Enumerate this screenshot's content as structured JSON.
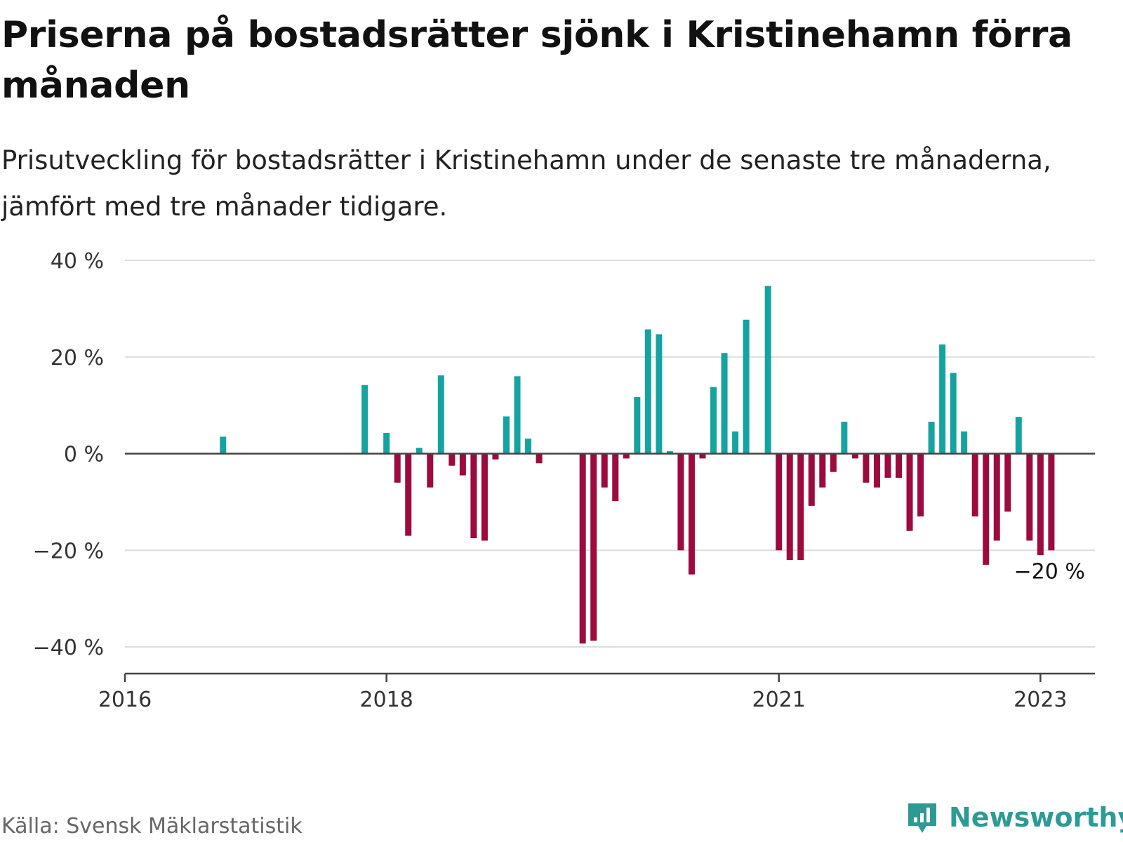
{
  "header": {
    "title": "Priserna på bostadsrätter sjönk i Kristinehamn förra månaden",
    "subtitle": "Prisutveckling för bostadsrätter i Kristinehamn under de senaste tre månaderna, jämfört med tre månader tidigare."
  },
  "footer": {
    "source": "Källa: Svensk Mäklarstatistik",
    "brand": "Newsworthy"
  },
  "colors": {
    "positive": "#15a3a0",
    "negative": "#9c0a3e",
    "gridline": "#dddddd",
    "axis": "#444444",
    "brand": "#2f9a94"
  },
  "chart_data": {
    "type": "bar",
    "unit": "%",
    "y_ticks": [
      40,
      20,
      0,
      -20,
      -40
    ],
    "y_tick_labels": [
      "40 %",
      "20 %",
      "0 %",
      "−20 %",
      "−40 %"
    ],
    "ylim": [
      -45,
      40
    ],
    "x_ticks": [
      "2016-01",
      "2018-01",
      "2021-01",
      "2023-01"
    ],
    "x_tick_labels": [
      "2016",
      "2018",
      "2021",
      "2023"
    ],
    "xlim": [
      "2016-01",
      "2023-06"
    ],
    "grid": true,
    "end_label": "−20 %",
    "series": [
      {
        "x": [
          "2016-10",
          "2017-11",
          "2018-01",
          "2018-02",
          "2018-03",
          "2018-04",
          "2018-05",
          "2018-06",
          "2018-07",
          "2018-08",
          "2018-09",
          "2018-10",
          "2018-11",
          "2018-12",
          "2019-01",
          "2019-02",
          "2019-03",
          "2019-07",
          "2019-08",
          "2019-09",
          "2019-10",
          "2019-11",
          "2019-12",
          "2020-01",
          "2020-02",
          "2020-03",
          "2020-04",
          "2020-05",
          "2020-06",
          "2020-07",
          "2020-08",
          "2020-09",
          "2020-10",
          "2020-12",
          "2021-01",
          "2021-02",
          "2021-03",
          "2021-04",
          "2021-05",
          "2021-06",
          "2021-07",
          "2021-08",
          "2021-09",
          "2021-10",
          "2021-11",
          "2021-12",
          "2022-01",
          "2022-02",
          "2022-03",
          "2022-04",
          "2022-05",
          "2022-06",
          "2022-07",
          "2022-08",
          "2022-09",
          "2022-10",
          "2022-11",
          "2022-12",
          "2023-01",
          "2023-02"
        ],
        "values": [
          3.5,
          14.2,
          4.3,
          -6,
          -17,
          1.2,
          -7,
          16.2,
          -2.5,
          -4.5,
          -17.5,
          -18,
          -1.2,
          7.7,
          16,
          3.1,
          -2,
          -39.3,
          -38.7,
          -7,
          -9.8,
          -1,
          11.7,
          25.7,
          24.7,
          0.5,
          -20,
          -25,
          -1,
          13.8,
          20.8,
          4.6,
          27.7,
          34.7,
          -20,
          -22,
          -22,
          -10.8,
          -7,
          -3.8,
          6.6,
          -1,
          -6,
          -7,
          -5,
          -5,
          -16,
          -13,
          6.6,
          22.6,
          16.7,
          4.6,
          -13,
          -23,
          -18,
          -12,
          7.6,
          -18,
          -21,
          -20
        ]
      }
    ]
  }
}
